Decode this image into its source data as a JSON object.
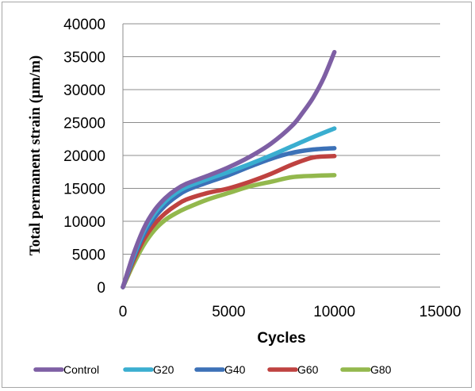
{
  "chart_data": {
    "type": "line",
    "xlabel": "Cycles",
    "ylabel": "Total permanent strain (µm/m)",
    "xlim": [
      0,
      15000
    ],
    "ylim": [
      0,
      40000
    ],
    "xticks": [
      "0",
      "5000",
      "10000",
      "15000"
    ],
    "yticks": [
      "0",
      "5000",
      "10000",
      "15000",
      "20000",
      "25000",
      "30000",
      "35000",
      "40000"
    ],
    "grid": "horizontal",
    "legend_position": "bottom",
    "series": [
      {
        "name": "Control",
        "color": "#7e5fa4",
        "x": [
          0,
          500,
          1000,
          1500,
          2000,
          2500,
          3000,
          4000,
          5000,
          6000,
          7000,
          8000,
          8500,
          9000,
          9500,
          10000
        ],
        "y": [
          0,
          5000,
          9000,
          11700,
          13500,
          14800,
          15700,
          16900,
          18200,
          19800,
          21800,
          24500,
          26500,
          28800,
          31800,
          35700
        ]
      },
      {
        "name": "G20",
        "color": "#3aaed0",
        "x": [
          0,
          500,
          1000,
          1500,
          2000,
          2500,
          3000,
          4000,
          5000,
          6000,
          7000,
          8000,
          9000,
          10000
        ],
        "y": [
          0,
          4700,
          8600,
          11200,
          13000,
          14300,
          15200,
          16400,
          17500,
          18700,
          20000,
          21400,
          22800,
          24100
        ]
      },
      {
        "name": "G40",
        "color": "#3c71b7",
        "x": [
          0,
          500,
          1000,
          1500,
          2000,
          2500,
          3000,
          4000,
          5000,
          6000,
          7000,
          8000,
          9000,
          10000
        ],
        "y": [
          0,
          4400,
          8100,
          10600,
          12400,
          13700,
          14700,
          15900,
          17000,
          18300,
          19500,
          20400,
          20900,
          21100
        ]
      },
      {
        "name": "G60",
        "color": "#bf4240",
        "x": [
          0,
          500,
          1000,
          1500,
          2000,
          2500,
          3000,
          4000,
          5000,
          6000,
          7000,
          8000,
          9000,
          10000
        ],
        "y": [
          0,
          4000,
          7300,
          9600,
          11200,
          12400,
          13300,
          14300,
          15000,
          16000,
          17200,
          18600,
          19700,
          19900
        ]
      },
      {
        "name": "G80",
        "color": "#93b84d",
        "x": [
          0,
          500,
          1000,
          1500,
          2000,
          2500,
          3000,
          4000,
          5000,
          6000,
          7000,
          8000,
          9000,
          10000
        ],
        "y": [
          0,
          3500,
          6500,
          8700,
          10200,
          11200,
          12000,
          13300,
          14300,
          15300,
          16000,
          16700,
          16900,
          17000
        ]
      }
    ]
  }
}
